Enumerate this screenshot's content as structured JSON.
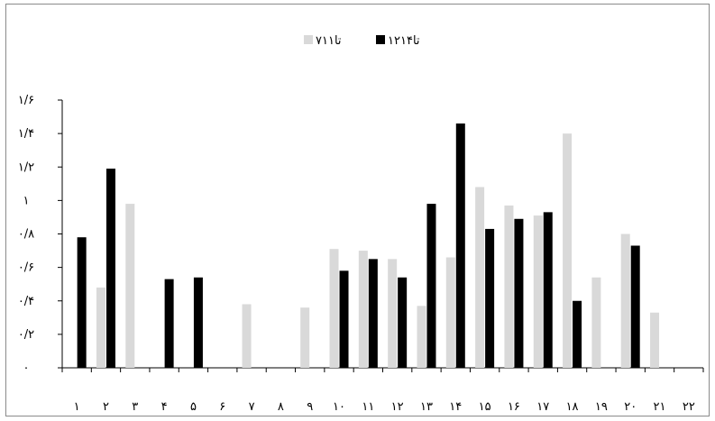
{
  "chart_data": {
    "type": "bar",
    "title": "",
    "xlabel": "",
    "ylabel": "",
    "ylim": [
      0,
      1.6
    ],
    "y_ticks": [
      0,
      0.2,
      0.4,
      0.6,
      0.8,
      1.0,
      1.2,
      1.4,
      1.6
    ],
    "y_tick_labels": [
      "۰",
      "۰/۲",
      "۰/۴",
      "۰/۶",
      "۰/۸",
      "۱",
      "۱/۲",
      "۱/۴",
      "۱/۶"
    ],
    "categories": [
      "۱",
      "۲",
      "۳",
      "۴",
      "۵",
      "۶",
      "۷",
      "۸",
      "۹",
      "۱۰",
      "۱۱",
      "۱۲",
      "۱۳",
      "۱۴",
      "۱۵",
      "۱۶",
      "۱۷",
      "۱۸",
      "۱۹",
      "۲۰",
      "۲۱",
      "۲۲"
    ],
    "legend_position": "top-center",
    "grid": false,
    "series": [
      {
        "name": "۷تا۱۱",
        "color": "#d9d9d9",
        "values": [
          0,
          0.48,
          0.98,
          0,
          0,
          0,
          0.38,
          0,
          0.36,
          0.71,
          0.7,
          0.65,
          0.37,
          0.66,
          1.08,
          0.97,
          0.91,
          1.4,
          0.54,
          0.8,
          0.33,
          0
        ]
      },
      {
        "name": "۱۲تا۱۴",
        "color": "#000000",
        "values": [
          0.78,
          1.19,
          0,
          0.53,
          0.54,
          0,
          0,
          0,
          0,
          0.58,
          0.65,
          0.54,
          0.98,
          1.46,
          0.83,
          0.89,
          0.93,
          0.4,
          0,
          0.73,
          0,
          0
        ]
      }
    ]
  }
}
